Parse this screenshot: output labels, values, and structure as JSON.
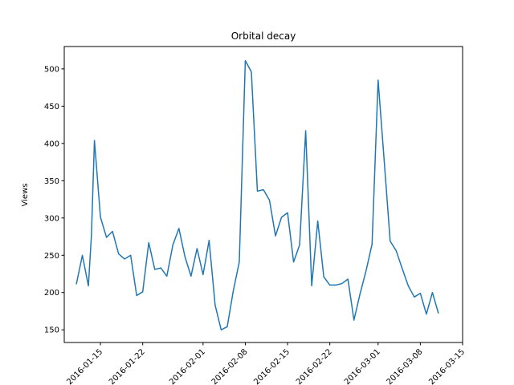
{
  "chart_data": {
    "type": "line",
    "title": "Orbital decay",
    "xlabel": "",
    "ylabel": "Views",
    "grid": false,
    "legend": "none",
    "xlim": [
      "2016-01-09",
      "2016-03-15"
    ],
    "ylim": [
      133,
      530
    ],
    "x_ticks": [
      "2016-01-15",
      "2016-01-22",
      "2016-02-01",
      "2016-02-08",
      "2016-02-15",
      "2016-02-22",
      "2016-03-01",
      "2016-03-08",
      "2016-03-15"
    ],
    "y_ticks": [
      150,
      200,
      250,
      300,
      350,
      400,
      450,
      500
    ],
    "series": [
      {
        "color": "#1f77b4",
        "x": [
          "2016-01-11",
          "2016-01-12",
          "2016-01-13",
          "2016-01-13T12",
          "2016-01-14",
          "2016-01-15",
          "2016-01-16",
          "2016-01-17",
          "2016-01-18",
          "2016-01-19",
          "2016-01-20",
          "2016-01-21",
          "2016-01-22",
          "2016-01-23",
          "2016-01-24",
          "2016-01-25",
          "2016-01-26",
          "2016-01-27",
          "2016-01-28",
          "2016-01-29",
          "2016-01-30",
          "2016-01-31",
          "2016-02-01",
          "2016-02-02",
          "2016-02-03",
          "2016-02-04",
          "2016-02-05",
          "2016-02-06",
          "2016-02-07",
          "2016-02-08",
          "2016-02-09",
          "2016-02-10",
          "2016-02-11",
          "2016-02-12",
          "2016-02-13",
          "2016-02-14",
          "2016-02-15",
          "2016-02-16",
          "2016-02-17",
          "2016-02-18",
          "2016-02-19",
          "2016-02-20",
          "2016-02-21",
          "2016-02-22",
          "2016-02-23",
          "2016-02-24",
          "2016-02-25",
          "2016-02-26",
          "2016-02-27",
          "2016-02-28",
          "2016-02-29",
          "2016-03-01",
          "2016-03-02",
          "2016-03-03",
          "2016-03-04",
          "2016-03-05",
          "2016-03-06",
          "2016-03-07",
          "2016-03-08",
          "2016-03-09",
          "2016-03-10",
          "2016-03-11"
        ],
        "values": [
          211,
          250,
          209,
          276,
          404,
          301,
          274,
          282,
          252,
          245,
          250,
          196,
          201,
          267,
          231,
          233,
          222,
          264,
          286,
          248,
          222,
          259,
          224,
          270,
          183,
          150,
          154,
          202,
          241,
          511,
          496,
          336,
          338,
          324,
          276,
          301,
          307,
          241,
          264,
          417,
          209,
          296,
          221,
          210,
          210,
          212,
          218,
          163,
          198,
          229,
          265,
          485,
          378,
          269,
          256,
          232,
          209,
          194,
          199,
          171,
          200,
          172
        ]
      }
    ]
  }
}
